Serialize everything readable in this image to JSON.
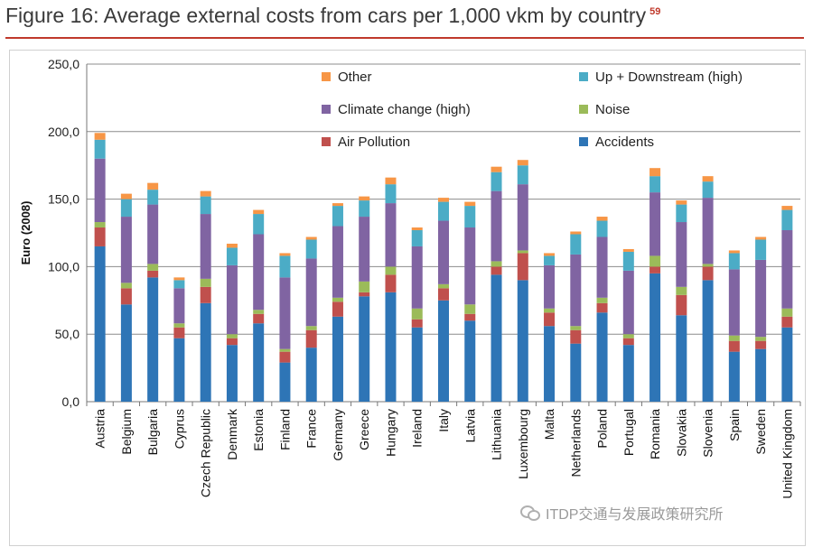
{
  "figure": {
    "title": "Figure 16: Average external costs from cars per 1,000 vkm by country",
    "footnote": "59"
  },
  "watermark": {
    "text": "ITDP交通与发展政策研究所"
  },
  "colors": {
    "Accidents": "#2e75b6",
    "Air Pollution": "#c0504d",
    "Noise": "#9bbb59",
    "Climate change (high)": "#8064a2",
    "Up + Downstream (high)": "#4bacc6",
    "Other": "#f79646"
  },
  "chart_data": {
    "type": "bar",
    "stacked": true,
    "title": "",
    "xlabel": "",
    "ylabel": "Euro (2008)",
    "ylim": [
      0,
      250
    ],
    "yticks": [
      "0,0",
      "50,0",
      "100,0",
      "150,0",
      "200,0",
      "250,0"
    ],
    "grid": true,
    "legend_position": "top-right",
    "legend": [
      "Other",
      "Up + Downstream (high)",
      "Climate change (high)",
      "Noise",
      "Air Pollution",
      "Accidents"
    ],
    "categories": [
      "Austria",
      "Belgium",
      "Bulgaria",
      "Cyprus",
      "Czech Republic",
      "Denmark",
      "Estonia",
      "Finland",
      "France",
      "Germany",
      "Greece",
      "Hungary",
      "Ireland",
      "Italy",
      "Latvia",
      "Lithuania",
      "Luxembourg",
      "Malta",
      "Netherlands",
      "Poland",
      "Portugal",
      "Romania",
      "Slovakia",
      "Slovenia",
      "Spain",
      "Sweden",
      "United Kingdom"
    ],
    "series": [
      {
        "name": "Accidents",
        "values": [
          115,
          72,
          92,
          47,
          73,
          42,
          58,
          29,
          40,
          63,
          78,
          81,
          55,
          75,
          60,
          94,
          90,
          56,
          43,
          66,
          42,
          95,
          64,
          90,
          37,
          39,
          55
        ]
      },
      {
        "name": "Air Pollution",
        "values": [
          14,
          12,
          5,
          8,
          12,
          5,
          7,
          8,
          13,
          11,
          3,
          13,
          6,
          9,
          5,
          6,
          20,
          10,
          10,
          7,
          5,
          5,
          15,
          10,
          8,
          6,
          8
        ]
      },
      {
        "name": "Noise",
        "values": [
          4,
          4,
          5,
          3,
          6,
          3,
          3,
          2,
          3,
          3,
          8,
          6,
          8,
          3,
          7,
          4,
          2,
          3,
          3,
          4,
          3,
          8,
          6,
          2,
          4,
          3,
          6
        ]
      },
      {
        "name": "Climate change (high)",
        "values": [
          47,
          49,
          44,
          26,
          48,
          51,
          56,
          53,
          50,
          53,
          48,
          47,
          46,
          47,
          57,
          52,
          49,
          32,
          53,
          45,
          47,
          47,
          48,
          49,
          49,
          57,
          58
        ]
      },
      {
        "name": "Up + Downstream (high)",
        "values": [
          14,
          13,
          11,
          6,
          13,
          13,
          15,
          16,
          14,
          15,
          12,
          14,
          12,
          14,
          16,
          14,
          14,
          7,
          15,
          12,
          14,
          12,
          13,
          12,
          12,
          15,
          15
        ]
      },
      {
        "name": "Other",
        "values": [
          5,
          4,
          5,
          2,
          4,
          3,
          3,
          2,
          2,
          2,
          3,
          5,
          2,
          3,
          3,
          4,
          4,
          2,
          2,
          3,
          2,
          6,
          3,
          4,
          2,
          2,
          3
        ]
      }
    ]
  }
}
